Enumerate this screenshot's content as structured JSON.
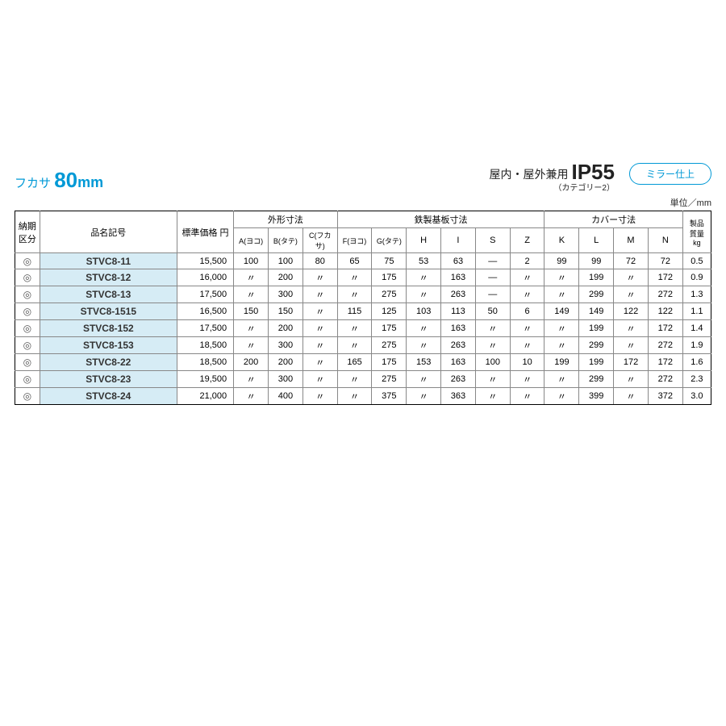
{
  "header": {
    "fukasa_label": "フカサ",
    "fukasa_value": "80",
    "fukasa_unit": "mm",
    "ip_prefix": "屋内・屋外兼用",
    "ip_value": "IP55",
    "ip_category": "（カテゴリー2）",
    "pill": "ミラー仕上",
    "unit_label": "単位／mm"
  },
  "columns": {
    "nouki": "納期\n区分",
    "hinmei": "品名記号",
    "price": "標準価格 円",
    "group_gaikei": "外形寸法",
    "group_tetsu": "鉄製基板寸法",
    "group_cover": "カバー寸法",
    "a": "A(ヨコ)",
    "b": "B(タテ)",
    "c": "C(フカサ)",
    "f": "F(ヨコ)",
    "g": "G(タテ)",
    "h": "H",
    "i": "I",
    "s": "S",
    "z": "Z",
    "k": "K",
    "l": "L",
    "m": "M",
    "n": "N",
    "kg": "製品\n質量\nkg"
  },
  "groups": [
    {
      "rows": [
        {
          "mark": "◎",
          "name": "STVC8-11",
          "price": "15,500",
          "a": "100",
          "b": "100",
          "c": "80",
          "f": "65",
          "g": "75",
          "h": "53",
          "i": "63",
          "s": "—",
          "z": "2",
          "k": "99",
          "l": "99",
          "m": "72",
          "n": "72",
          "kg": "0.5"
        },
        {
          "mark": "◎",
          "name": "STVC8-12",
          "price": "16,000",
          "a": "〃",
          "b": "200",
          "c": "〃",
          "f": "〃",
          "g": "175",
          "h": "〃",
          "i": "163",
          "s": "—",
          "z": "〃",
          "k": "〃",
          "l": "199",
          "m": "〃",
          "n": "172",
          "kg": "0.9"
        },
        {
          "mark": "◎",
          "name": "STVC8-13",
          "price": "17,500",
          "a": "〃",
          "b": "300",
          "c": "〃",
          "f": "〃",
          "g": "275",
          "h": "〃",
          "i": "263",
          "s": "—",
          "z": "〃",
          "k": "〃",
          "l": "299",
          "m": "〃",
          "n": "272",
          "kg": "1.3"
        }
      ]
    },
    {
      "rows": [
        {
          "mark": "◎",
          "name": "STVC8-1515",
          "price": "16,500",
          "a": "150",
          "b": "150",
          "c": "〃",
          "f": "115",
          "g": "125",
          "h": "103",
          "i": "113",
          "s": "50",
          "z": "6",
          "k": "149",
          "l": "149",
          "m": "122",
          "n": "122",
          "kg": "1.1"
        },
        {
          "mark": "◎",
          "name": "STVC8-152",
          "price": "17,500",
          "a": "〃",
          "b": "200",
          "c": "〃",
          "f": "〃",
          "g": "175",
          "h": "〃",
          "i": "163",
          "s": "〃",
          "z": "〃",
          "k": "〃",
          "l": "199",
          "m": "〃",
          "n": "172",
          "kg": "1.4"
        },
        {
          "mark": "◎",
          "name": "STVC8-153",
          "price": "18,500",
          "a": "〃",
          "b": "300",
          "c": "〃",
          "f": "〃",
          "g": "275",
          "h": "〃",
          "i": "263",
          "s": "〃",
          "z": "〃",
          "k": "〃",
          "l": "299",
          "m": "〃",
          "n": "272",
          "kg": "1.9"
        }
      ]
    },
    {
      "rows": [
        {
          "mark": "◎",
          "name": "STVC8-22",
          "price": "18,500",
          "a": "200",
          "b": "200",
          "c": "〃",
          "f": "165",
          "g": "175",
          "h": "153",
          "i": "163",
          "s": "100",
          "z": "10",
          "k": "199",
          "l": "199",
          "m": "172",
          "n": "172",
          "kg": "1.6"
        },
        {
          "mark": "◎",
          "name": "STVC8-23",
          "price": "19,500",
          "a": "〃",
          "b": "300",
          "c": "〃",
          "f": "〃",
          "g": "275",
          "h": "〃",
          "i": "263",
          "s": "〃",
          "z": "〃",
          "k": "〃",
          "l": "299",
          "m": "〃",
          "n": "272",
          "kg": "2.3"
        },
        {
          "mark": "◎",
          "name": "STVC8-24",
          "price": "21,000",
          "a": "〃",
          "b": "400",
          "c": "〃",
          "f": "〃",
          "g": "375",
          "h": "〃",
          "i": "363",
          "s": "〃",
          "z": "〃",
          "k": "〃",
          "l": "399",
          "m": "〃",
          "n": "372",
          "kg": "3.0"
        }
      ]
    }
  ]
}
